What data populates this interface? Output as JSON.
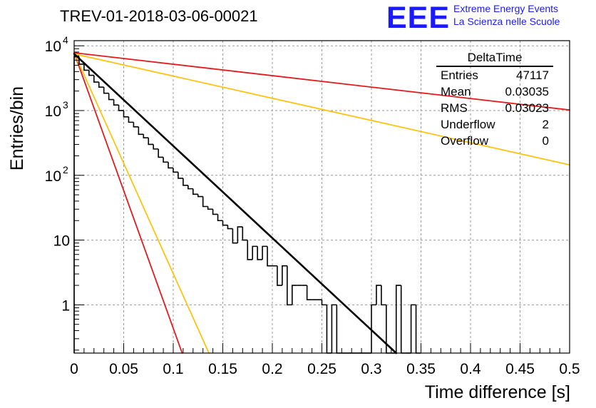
{
  "title": "TREV-01-2018-03-06-00021",
  "logo": {
    "mark": "EEE",
    "line1": "Extreme Energy Events",
    "line2": "La Scienza nelle Scuole"
  },
  "stats_box": {
    "header": "DeltaTime",
    "rows": [
      {
        "label": "Entries",
        "value": "47117"
      },
      {
        "label": "Mean",
        "value": "0.03035"
      },
      {
        "label": "RMS",
        "value": "0.03023"
      },
      {
        "label": "Underflow",
        "value": "2"
      },
      {
        "label": "Overflow",
        "value": "0"
      }
    ]
  },
  "colors": {
    "histogram": "#000000",
    "fit": "#000000",
    "red_lines": "#e31a1c",
    "orange_lines": "#ffc20e",
    "grid": "#9a9a9a"
  },
  "chart_data": {
    "type": "histogram",
    "xlabel": "Time difference [s]",
    "ylabel": "Entries/bin",
    "xlim": [
      0,
      0.5
    ],
    "ylim": [
      0.18,
      12000
    ],
    "yscale": "log",
    "grid": true,
    "x_ticks": [
      "0",
      "0.05",
      "0.1",
      "0.15",
      "0.2",
      "0.25",
      "0.3",
      "0.35",
      "0.4",
      "0.45",
      "0.5"
    ],
    "y_ticks": [
      {
        "value": 1,
        "label": "1"
      },
      {
        "value": 10,
        "label": "10"
      },
      {
        "value": 100,
        "label": "10",
        "exp": "2"
      },
      {
        "value": 1000,
        "label": "10",
        "exp": "3"
      },
      {
        "value": 10000,
        "label": "10",
        "exp": "4"
      }
    ],
    "bin_width": 0.005,
    "histogram": {
      "bin_low_edges": [
        0,
        0.005,
        0.01,
        0.015,
        0.02,
        0.025,
        0.03,
        0.035,
        0.04,
        0.045,
        0.05,
        0.055,
        0.06,
        0.065,
        0.07,
        0.075,
        0.08,
        0.085,
        0.09,
        0.095,
        0.1,
        0.105,
        0.11,
        0.115,
        0.12,
        0.125,
        0.13,
        0.135,
        0.14,
        0.145,
        0.15,
        0.155,
        0.16,
        0.165,
        0.17,
        0.175,
        0.18,
        0.185,
        0.19,
        0.195,
        0.2,
        0.205,
        0.21,
        0.215,
        0.22,
        0.225,
        0.23,
        0.235,
        0.24,
        0.245,
        0.25,
        0.255,
        0.26,
        0.265,
        0.27,
        0.275,
        0.28,
        0.285,
        0.29,
        0.295,
        0.3,
        0.305,
        0.31,
        0.315,
        0.32,
        0.325,
        0.33,
        0.335,
        0.34,
        0.345
      ],
      "counts": [
        6800,
        5200,
        4200,
        3500,
        2750,
        2300,
        1850,
        1480,
        1220,
        1000,
        800,
        660,
        560,
        430,
        380,
        300,
        255,
        190,
        160,
        130,
        112,
        90,
        70,
        62,
        51,
        47,
        33,
        30,
        25,
        20,
        17,
        15,
        9,
        16,
        10,
        5,
        8,
        5,
        8,
        4,
        4,
        2,
        4,
        1,
        2,
        2,
        2,
        1.2,
        1.2,
        1.2,
        1,
        0,
        1,
        0,
        0,
        0,
        0,
        0,
        0,
        0,
        1,
        2,
        1,
        0,
        0,
        2,
        0,
        0,
        1,
        0
      ]
    },
    "series": [
      {
        "kind": "fit",
        "color": "#000000",
        "x": [
          0,
          0.325
        ],
        "y": [
          7500,
          0.18
        ]
      },
      {
        "kind": "exponential",
        "color": "#e31a1c",
        "x": [
          0,
          0.5
        ],
        "y": [
          7800,
          1020
        ]
      },
      {
        "kind": "exponential",
        "color": "#ffc20e",
        "x": [
          0,
          0.5
        ],
        "y": [
          7500,
          145
        ]
      },
      {
        "kind": "exponential",
        "color": "#e31a1c",
        "x": [
          0,
          0.109
        ],
        "y": [
          7800,
          0.18
        ]
      },
      {
        "kind": "exponential",
        "color": "#ffc20e",
        "x": [
          0,
          0.136
        ],
        "y": [
          7800,
          0.18
        ]
      }
    ]
  }
}
